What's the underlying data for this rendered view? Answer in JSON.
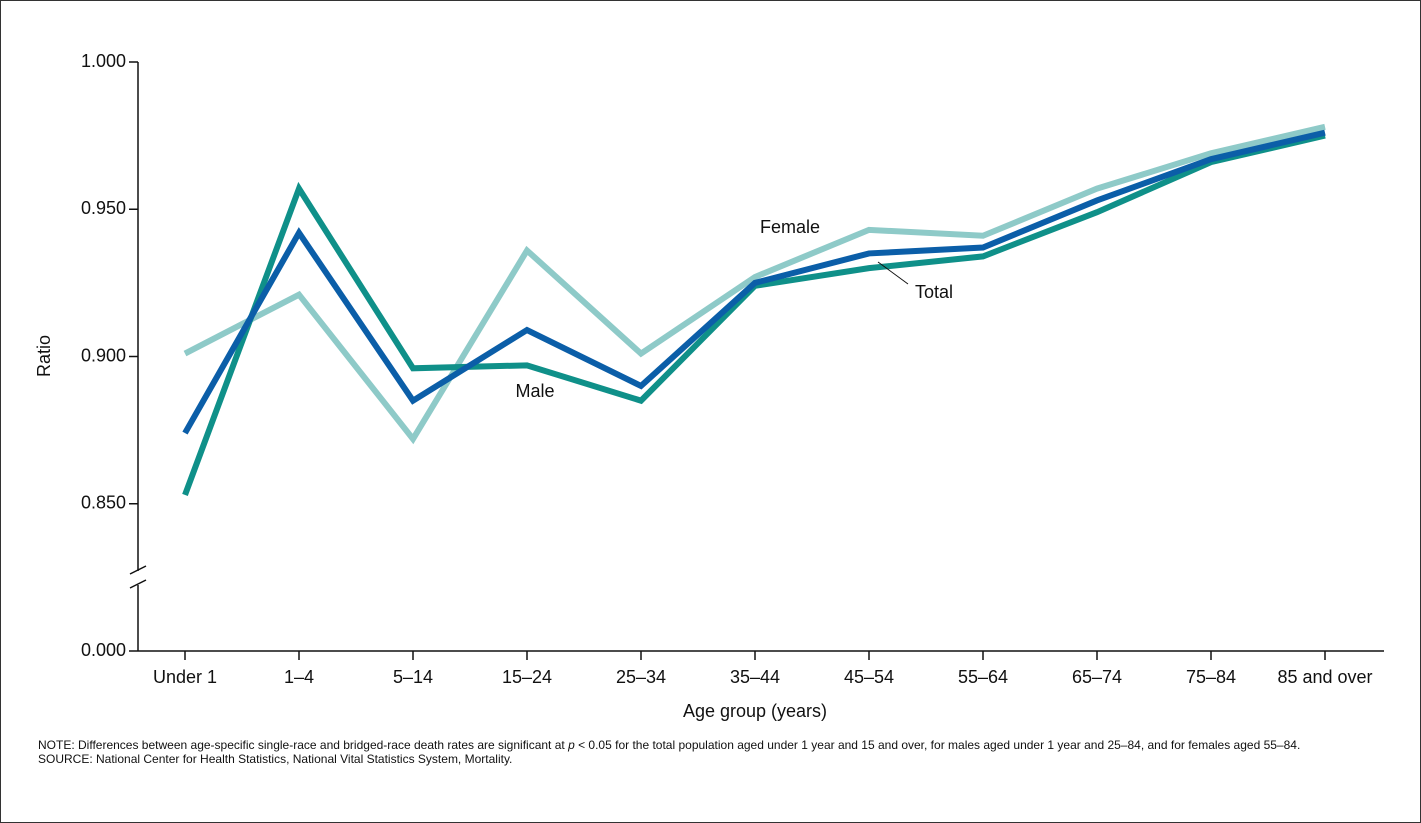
{
  "chart_data": {
    "type": "line",
    "categories": [
      "Under 1",
      "1–4",
      "5–14",
      "15–24",
      "25–34",
      "35–44",
      "45–54",
      "55–64",
      "65–74",
      "75–84",
      "85 and over"
    ],
    "series": [
      {
        "name": "Female",
        "color": "#8ecac8",
        "values": [
          0.901,
          0.921,
          0.872,
          0.936,
          0.901,
          0.927,
          0.943,
          0.941,
          0.957,
          0.969,
          0.978
        ]
      },
      {
        "name": "Male",
        "color": "#0f9089",
        "values": [
          0.853,
          0.957,
          0.896,
          0.897,
          0.885,
          0.924,
          0.93,
          0.934,
          0.949,
          0.966,
          0.975
        ]
      },
      {
        "name": "Total",
        "color": "#0b5ea8",
        "values": [
          0.874,
          0.942,
          0.885,
          0.909,
          0.89,
          0.925,
          0.935,
          0.937,
          0.953,
          0.967,
          0.976
        ]
      }
    ],
    "ylim": [
      0,
      1
    ],
    "axis_break": [
      0,
      0.8
    ],
    "yticks": [
      {
        "value": 0,
        "label": "0.000"
      },
      {
        "value": 0.85,
        "label": "0.850"
      },
      {
        "value": 0.9,
        "label": "0.900"
      },
      {
        "value": 0.95,
        "label": "0.950"
      },
      {
        "value": 1,
        "label": "1.000"
      }
    ],
    "y_label": "Ratio",
    "x_label": "Age group (years)",
    "grid": false,
    "note": {
      "before": "NOTE: Differences between age-specific single-race and bridged-race death rates are significant at ",
      "italic": "p",
      "after": " < 0.05 for the total population aged under 1 year and 15 and over, for males aged under 1 year and 25–84, and for females aged 55–84."
    },
    "source": "SOURCE: National Center for Health Statistics, National Vital Statistics System, Mortality."
  }
}
